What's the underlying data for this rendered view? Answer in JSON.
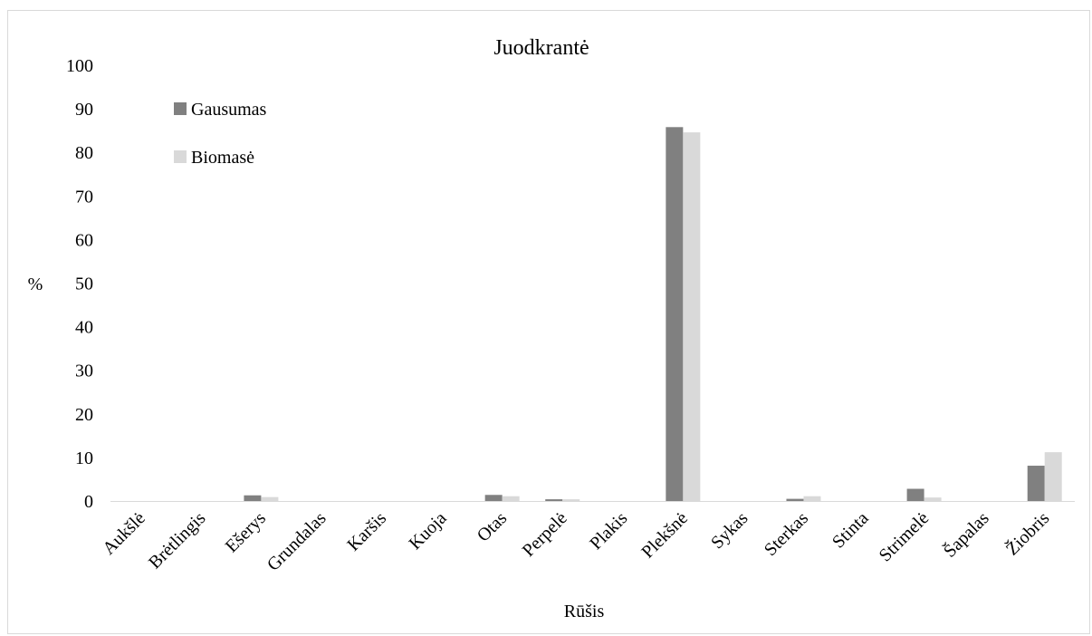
{
  "chart_data": {
    "type": "bar",
    "title": "Juodkrantė",
    "xlabel": "Rūšis",
    "ylabel": "%",
    "ylim": [
      0,
      100
    ],
    "yticks": [
      0,
      10,
      20,
      30,
      40,
      50,
      60,
      70,
      80,
      90,
      100
    ],
    "grid": false,
    "legend_position": "top-left",
    "categories": [
      "Aukšlė",
      "Brėtlingis",
      "Ešerys",
      "Grundalas",
      "Karšis",
      "Kuoja",
      "Otas",
      "Perpelė",
      "Plakis",
      "Plekšnė",
      "Sykas",
      "Sterkas",
      "Stinta",
      "Strimelė",
      "Šapalas",
      "Žiobris"
    ],
    "series": [
      {
        "name": "Gausumas",
        "color": "#808080",
        "values": [
          0,
          0,
          1.3,
          0,
          0,
          0,
          1.4,
          0.4,
          0,
          85.8,
          0,
          0.5,
          0,
          2.8,
          0,
          8.1
        ]
      },
      {
        "name": "Biomasė",
        "color": "#d9d9d9",
        "values": [
          0,
          0,
          0.9,
          0,
          0,
          0,
          1.1,
          0.4,
          0,
          84.6,
          0,
          1.1,
          0,
          0.8,
          0,
          11.2
        ]
      }
    ]
  }
}
